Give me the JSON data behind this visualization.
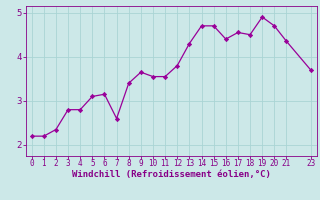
{
  "x": [
    0,
    1,
    2,
    3,
    4,
    5,
    6,
    7,
    8,
    9,
    10,
    11,
    12,
    13,
    14,
    15,
    16,
    17,
    18,
    19,
    20,
    21,
    23
  ],
  "y": [
    2.2,
    2.2,
    2.35,
    2.8,
    2.8,
    3.1,
    3.15,
    2.6,
    3.4,
    3.65,
    3.55,
    3.55,
    3.8,
    4.3,
    4.7,
    4.7,
    4.4,
    4.55,
    4.5,
    4.9,
    4.7,
    4.35,
    3.7
  ],
  "line_color": "#990099",
  "marker": "D",
  "marker_size": 2.2,
  "line_width": 0.9,
  "xlabel": "Windchill (Refroidissement éolien,°C)",
  "xlabel_fontsize": 6.5,
  "ylim": [
    1.75,
    5.15
  ],
  "xlim": [
    -0.5,
    23.5
  ],
  "yticks": [
    2,
    3,
    4,
    5
  ],
  "xticks": [
    0,
    1,
    2,
    3,
    4,
    5,
    6,
    7,
    8,
    9,
    10,
    11,
    12,
    13,
    14,
    15,
    16,
    17,
    18,
    19,
    20,
    21,
    23
  ],
  "xtick_labels": [
    "0",
    "1",
    "2",
    "3",
    "4",
    "5",
    "6",
    "7",
    "8",
    "9",
    "10",
    "11",
    "12",
    "13",
    "14",
    "15",
    "16",
    "17",
    "18",
    "19",
    "20",
    "21",
    "23"
  ],
  "grid_color": "#aad4d4",
  "bg_color": "#cce8e8",
  "tick_fontsize": 5.5,
  "ytick_fontsize": 6.5,
  "tick_color": "#880088",
  "spine_color": "#880088",
  "label_color": "#880088"
}
